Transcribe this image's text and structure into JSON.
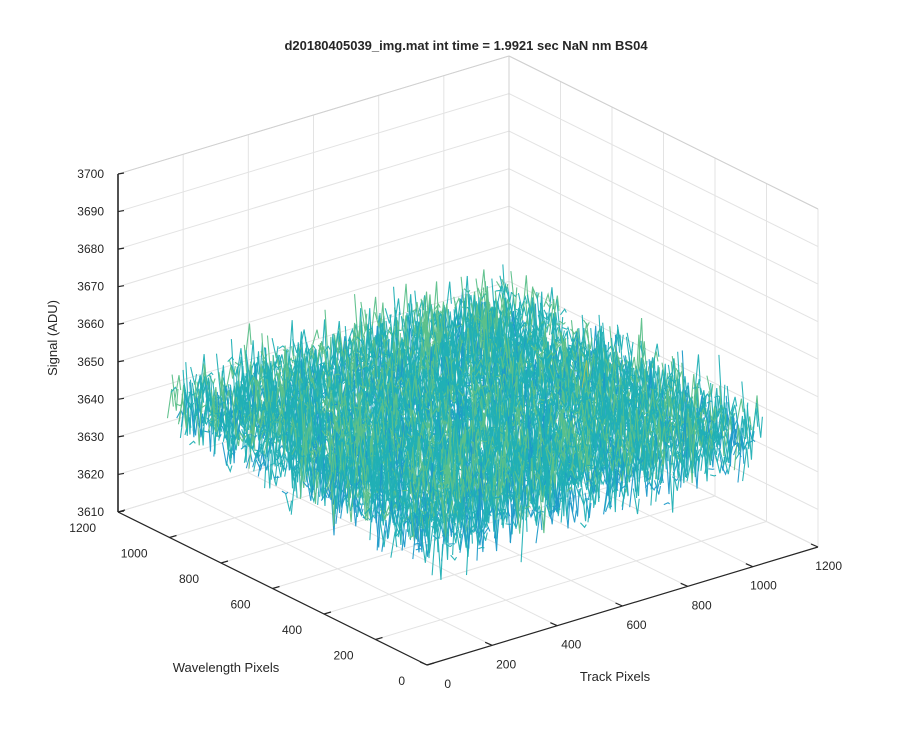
{
  "chart_data": {
    "type": "surface",
    "title": "d20180405039_img.mat int time = 1.9921 sec  NaN nm BS04",
    "zlabel": "Signal (ADU)",
    "ylabel": "Wavelength Pixels",
    "xlabel": "Track Pixels",
    "zlim": [
      3610,
      3700
    ],
    "ylim": [
      0,
      1200
    ],
    "xlim": [
      0,
      1200
    ],
    "z_ticks": [
      3610,
      3620,
      3630,
      3640,
      3650,
      3660,
      3670,
      3680,
      3690,
      3700
    ],
    "y_ticks": [
      0,
      200,
      400,
      600,
      800,
      1000,
      1200
    ],
    "x_ticks": [
      0,
      200,
      400,
      600,
      800,
      1000,
      1200
    ],
    "grid": true,
    "colormap": [
      "#0072bd",
      "#1d9ac9",
      "#21b0b5",
      "#5cc08a",
      "#a5c35c",
      "#eac033"
    ],
    "data_extent": {
      "x": [
        0,
        1024
      ],
      "y": [
        0,
        1024
      ]
    },
    "signal_summary": {
      "mean": 3645,
      "min": 3612,
      "max": 3692
    }
  }
}
